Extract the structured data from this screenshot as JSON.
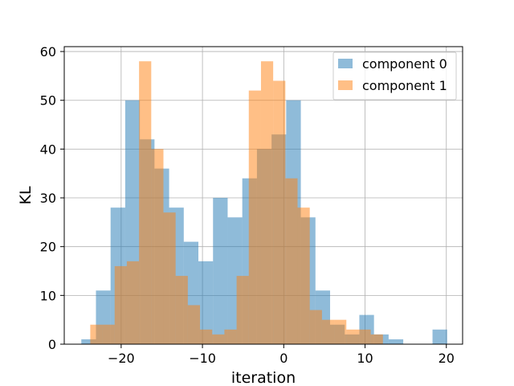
{
  "chart_data": {
    "type": "bar",
    "xlabel": "iteration",
    "ylabel": "KL",
    "xlim": [
      -27,
      22
    ],
    "ylim": [
      0,
      61
    ],
    "xticks": [
      -20,
      -10,
      0,
      10,
      20
    ],
    "xtick_labels": [
      "−20",
      "−10",
      "0",
      "10",
      "20"
    ],
    "yticks": [
      0,
      10,
      20,
      30,
      40,
      50,
      60
    ],
    "ytick_labels": [
      "0",
      "10",
      "20",
      "30",
      "40",
      "50",
      "60"
    ],
    "grid": true,
    "legend_position": "top-right",
    "series": [
      {
        "name": "component 0",
        "color": "#1f77b4",
        "bin_width": 1.8,
        "bins": [
          [
            -24.9,
            1
          ],
          [
            -23.1,
            11
          ],
          [
            -21.3,
            28
          ],
          [
            -19.5,
            50
          ],
          [
            -17.7,
            42
          ],
          [
            -15.9,
            36
          ],
          [
            -14.1,
            28
          ],
          [
            -12.3,
            21
          ],
          [
            -10.5,
            17
          ],
          [
            -8.7,
            30
          ],
          [
            -6.9,
            26
          ],
          [
            -5.1,
            34
          ],
          [
            -3.3,
            40
          ],
          [
            -1.5,
            43
          ],
          [
            0.3,
            50
          ],
          [
            2.1,
            26
          ],
          [
            3.9,
            11
          ],
          [
            5.7,
            4
          ],
          [
            7.5,
            2
          ],
          [
            9.3,
            6
          ],
          [
            11.1,
            2
          ],
          [
            12.9,
            1
          ],
          [
            14.7,
            0
          ],
          [
            16.5,
            0
          ],
          [
            18.3,
            3
          ]
        ]
      },
      {
        "name": "component 1",
        "color": "#ff7f0e",
        "bin_width": 1.5,
        "bins": [
          [
            -23.8,
            4
          ],
          [
            -22.3,
            4
          ],
          [
            -20.8,
            16
          ],
          [
            -19.3,
            17
          ],
          [
            -17.8,
            58
          ],
          [
            -16.3,
            40
          ],
          [
            -14.8,
            27
          ],
          [
            -13.3,
            14
          ],
          [
            -11.8,
            8
          ],
          [
            -10.3,
            3
          ],
          [
            -8.8,
            2
          ],
          [
            -7.3,
            3
          ],
          [
            -5.8,
            14
          ],
          [
            -4.3,
            52
          ],
          [
            -2.8,
            58
          ],
          [
            -1.3,
            54
          ],
          [
            0.2,
            34
          ],
          [
            1.7,
            28
          ],
          [
            3.2,
            7
          ],
          [
            4.7,
            5
          ],
          [
            6.2,
            5
          ],
          [
            7.7,
            3
          ],
          [
            9.2,
            3
          ],
          [
            10.7,
            2
          ]
        ]
      }
    ]
  }
}
